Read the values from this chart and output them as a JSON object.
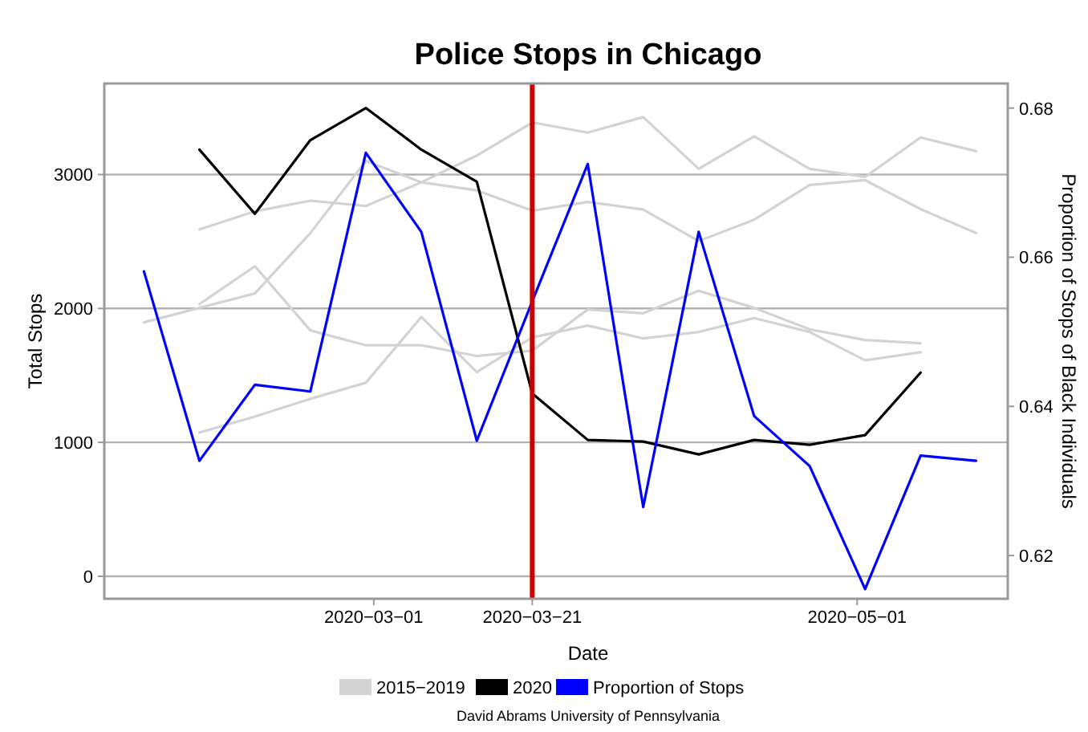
{
  "chart_data": {
    "type": "line",
    "title": "Police Stops in Chicago",
    "xlabel": "Date",
    "ylabel": "Total Stops",
    "y2label": "Proportion of Stops of Black Individuals",
    "xlim": [
      "2020-01-27",
      "2020-05-20"
    ],
    "xticks": [
      {
        "value": "2020-03-01",
        "label": "2020−03−01"
      },
      {
        "value": "2020-03-21",
        "label": "2020−03−21"
      },
      {
        "value": "2020-05-01",
        "label": "2020−05−01"
      }
    ],
    "ylim": [
      -168,
      3680
    ],
    "yticks": [
      0,
      1000,
      2000,
      3000
    ],
    "y2lim": [
      0.6142,
      0.6833
    ],
    "y2ticks": [
      0.62,
      0.64,
      0.66,
      0.68
    ],
    "grid": "y",
    "legend": "bottom",
    "line_style": "solid",
    "marker": "none",
    "ref_lines": [
      {
        "axis": "x",
        "value": "2020-03-21",
        "color": "#cc0000"
      }
    ],
    "annotations": [
      "David Abrams University of Pennsylvania"
    ],
    "series": [
      {
        "name": "2015−2019",
        "color": "#d3d3d3",
        "x": [
          "2020-02-08",
          "2020-02-15",
          "2020-02-22",
          "2020-02-29",
          "2020-03-07",
          "2020-03-14",
          "2020-03-21",
          "2020-03-28",
          "2020-04-04",
          "2020-04-11",
          "2020-04-18",
          "2020-04-25",
          "2020-05-02",
          "2020-05-09",
          "2020-05-16"
        ],
        "values": [
          2590,
          2725,
          2805,
          2765,
          2942,
          3142,
          3389,
          3313,
          3429,
          3042,
          3285,
          3042,
          2982,
          3277,
          3174
        ]
      },
      {
        "color": "#d3d3d3",
        "x": [
          "2020-02-01",
          "2020-02-08",
          "2020-02-15",
          "2020-02-22",
          "2020-02-29",
          "2020-03-07",
          "2020-03-14",
          "2020-03-21",
          "2020-03-28",
          "2020-04-04",
          "2020-04-11",
          "2020-04-18",
          "2020-04-25",
          "2020-05-02",
          "2020-05-09",
          "2020-05-16"
        ],
        "values": [
          1896,
          2004,
          2112,
          2563,
          3102,
          2942,
          2882,
          2730,
          2795,
          2738,
          2503,
          2663,
          2922,
          2958,
          2742,
          2563
        ]
      },
      {
        "color": "#d3d3d3",
        "x": [
          "2020-02-08",
          "2020-02-15",
          "2020-02-22",
          "2020-02-29",
          "2020-03-07",
          "2020-03-14",
          "2020-03-21",
          "2020-03-28",
          "2020-04-04",
          "2020-04-11",
          "2020-04-18",
          "2020-04-25",
          "2020-05-02",
          "2020-05-09"
        ],
        "values": [
          2032,
          2315,
          1836,
          1725,
          1725,
          1645,
          1685,
          1992,
          1964,
          2132,
          2004,
          1844,
          1764,
          1740
        ]
      },
      {
        "color": "#d3d3d3",
        "x": [
          "2020-02-08",
          "2020-02-15",
          "2020-02-22",
          "2020-02-29",
          "2020-03-07",
          "2020-03-14",
          "2020-03-21",
          "2020-03-28",
          "2020-04-04",
          "2020-04-11",
          "2020-04-18",
          "2020-04-25",
          "2020-05-02",
          "2020-05-09"
        ],
        "values": [
          1073,
          1193,
          1325,
          1445,
          1936,
          1525,
          1784,
          1872,
          1776,
          1824,
          1928,
          1824,
          1613,
          1673
        ]
      },
      {
        "name": "2020",
        "color": "#000000",
        "x": [
          "2020-02-08",
          "2020-02-15",
          "2020-02-22",
          "2020-02-29",
          "2020-03-07",
          "2020-03-14",
          "2020-03-21",
          "2020-03-28",
          "2020-04-04",
          "2020-04-11",
          "2020-04-18",
          "2020-04-25",
          "2020-05-02",
          "2020-05-09"
        ],
        "values": [
          3186,
          2707,
          3257,
          3497,
          3186,
          2946,
          1365,
          1018,
          1006,
          910,
          1018,
          982,
          1054,
          1521
        ]
      },
      {
        "name": "Proportion of Stops",
        "color": "#0000ff",
        "axis": "y2",
        "x": [
          "2020-02-01",
          "2020-02-08",
          "2020-02-15",
          "2020-02-22",
          "2020-02-29",
          "2020-03-07",
          "2020-03-14",
          "2020-03-21",
          "2020-03-28",
          "2020-04-04",
          "2020-04-11",
          "2020-04-18",
          "2020-04-25",
          "2020-05-02",
          "2020-05-09",
          "2020-05-16"
        ],
        "values": [
          0.6581,
          0.6327,
          0.6429,
          0.642,
          0.674,
          0.6634,
          0.6354,
          0.6541,
          0.6725,
          0.6265,
          0.6634,
          0.6387,
          0.632,
          0.6155,
          0.6334,
          0.6327
        ]
      }
    ]
  }
}
